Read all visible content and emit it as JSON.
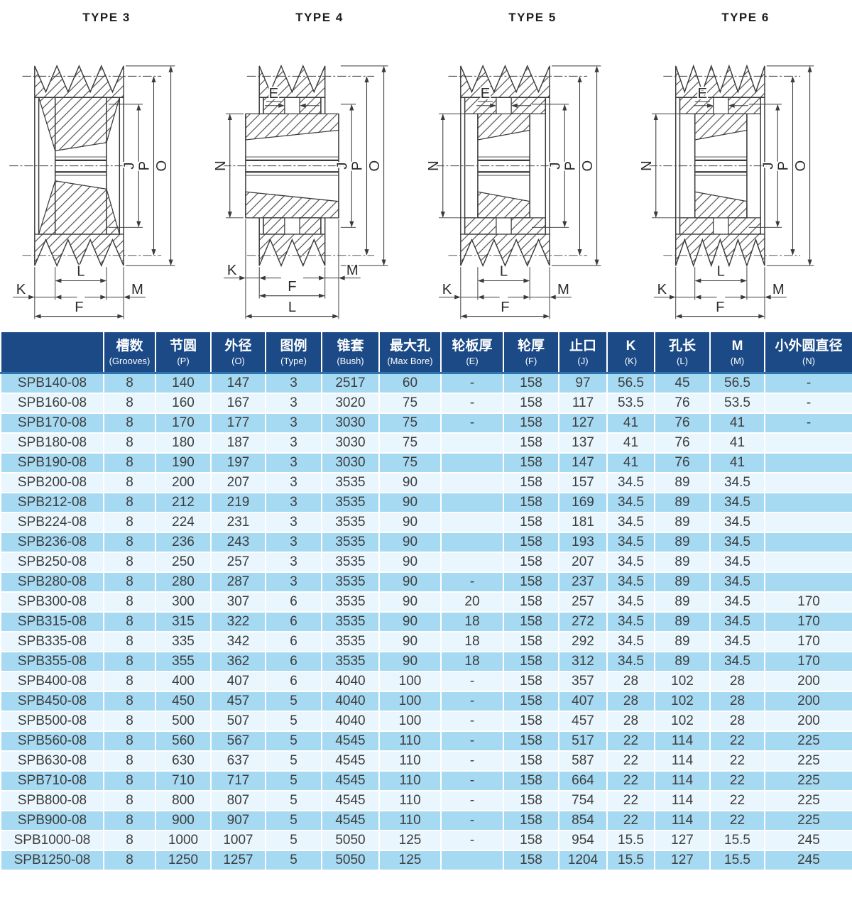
{
  "colors": {
    "header_bg": "#1b4a86",
    "header_divider": "#2e74ad",
    "row_odd": "#a6daf3",
    "row_even": "#e9f6fd",
    "cell_text": "#3d3d3d",
    "line": "#3b3b3b"
  },
  "drawings": [
    {
      "title": "TYPE 3",
      "labels": {
        "j": "J",
        "p": "P",
        "o": "O",
        "k": "K",
        "l": "L",
        "m": "M",
        "f": "F"
      }
    },
    {
      "title": "TYPE 4",
      "labels": {
        "e": "E",
        "n": "N",
        "j": "J",
        "p": "P",
        "o": "O",
        "k": "K",
        "l": "L",
        "m": "M",
        "f": "F"
      }
    },
    {
      "title": "TYPE 5",
      "labels": {
        "e": "E",
        "n": "N",
        "j": "J",
        "p": "P",
        "o": "O",
        "k": "K",
        "l": "L",
        "m": "M",
        "f": "F"
      }
    },
    {
      "title": "TYPE 6",
      "labels": {
        "e": "E",
        "n": "N",
        "j": "J",
        "p": "P",
        "o": "O",
        "k": "K",
        "l": "L",
        "m": "M",
        "f": "F"
      }
    }
  ],
  "table": {
    "columns": [
      {
        "zh": "",
        "en": ""
      },
      {
        "zh": "槽数",
        "en": "(Grooves)"
      },
      {
        "zh": "节圆",
        "en": "(P)"
      },
      {
        "zh": "外径",
        "en": "(O)"
      },
      {
        "zh": "图例",
        "en": "(Type)"
      },
      {
        "zh": "锥套",
        "en": "(Bush)"
      },
      {
        "zh": "最大孔",
        "en": "(Max Bore)"
      },
      {
        "zh": "轮板厚",
        "en": "(E)"
      },
      {
        "zh": "轮厚",
        "en": "(F)"
      },
      {
        "zh": "止口",
        "en": "(J)"
      },
      {
        "zh": "K",
        "en": "(K)"
      },
      {
        "zh": "孔长",
        "en": "(L)"
      },
      {
        "zh": "M",
        "en": "(M)"
      },
      {
        "zh": "小外圆直径",
        "en": "(N)"
      }
    ],
    "rows": [
      [
        "SPB140-08",
        "8",
        "140",
        "147",
        "3",
        "2517",
        "60",
        "-",
        "158",
        "97",
        "56.5",
        "45",
        "56.5",
        "-"
      ],
      [
        "SPB160-08",
        "8",
        "160",
        "167",
        "3",
        "3020",
        "75",
        "-",
        "158",
        "117",
        "53.5",
        "76",
        "53.5",
        "-"
      ],
      [
        "SPB170-08",
        "8",
        "170",
        "177",
        "3",
        "3030",
        "75",
        "-",
        "158",
        "127",
        "41",
        "76",
        "41",
        "-"
      ],
      [
        "SPB180-08",
        "8",
        "180",
        "187",
        "3",
        "3030",
        "75",
        "",
        "158",
        "137",
        "41",
        "76",
        "41",
        ""
      ],
      [
        "SPB190-08",
        "8",
        "190",
        "197",
        "3",
        "3030",
        "75",
        "",
        "158",
        "147",
        "41",
        "76",
        "41",
        ""
      ],
      [
        "SPB200-08",
        "8",
        "200",
        "207",
        "3",
        "3535",
        "90",
        "",
        "158",
        "157",
        "34.5",
        "89",
        "34.5",
        ""
      ],
      [
        "SPB212-08",
        "8",
        "212",
        "219",
        "3",
        "3535",
        "90",
        "",
        "158",
        "169",
        "34.5",
        "89",
        "34.5",
        ""
      ],
      [
        "SPB224-08",
        "8",
        "224",
        "231",
        "3",
        "3535",
        "90",
        "",
        "158",
        "181",
        "34.5",
        "89",
        "34.5",
        ""
      ],
      [
        "SPB236-08",
        "8",
        "236",
        "243",
        "3",
        "3535",
        "90",
        "",
        "158",
        "193",
        "34.5",
        "89",
        "34.5",
        ""
      ],
      [
        "SPB250-08",
        "8",
        "250",
        "257",
        "3",
        "3535",
        "90",
        "",
        "158",
        "207",
        "34.5",
        "89",
        "34.5",
        ""
      ],
      [
        "SPB280-08",
        "8",
        "280",
        "287",
        "3",
        "3535",
        "90",
        "-",
        "158",
        "237",
        "34.5",
        "89",
        "34.5",
        ""
      ],
      [
        "SPB300-08",
        "8",
        "300",
        "307",
        "6",
        "3535",
        "90",
        "20",
        "158",
        "257",
        "34.5",
        "89",
        "34.5",
        "170"
      ],
      [
        "SPB315-08",
        "8",
        "315",
        "322",
        "6",
        "3535",
        "90",
        "18",
        "158",
        "272",
        "34.5",
        "89",
        "34.5",
        "170"
      ],
      [
        "SPB335-08",
        "8",
        "335",
        "342",
        "6",
        "3535",
        "90",
        "18",
        "158",
        "292",
        "34.5",
        "89",
        "34.5",
        "170"
      ],
      [
        "SPB355-08",
        "8",
        "355",
        "362",
        "6",
        "3535",
        "90",
        "18",
        "158",
        "312",
        "34.5",
        "89",
        "34.5",
        "170"
      ],
      [
        "SPB400-08",
        "8",
        "400",
        "407",
        "6",
        "4040",
        "100",
        "-",
        "158",
        "357",
        "28",
        "102",
        "28",
        "200"
      ],
      [
        "SPB450-08",
        "8",
        "450",
        "457",
        "5",
        "4040",
        "100",
        "-",
        "158",
        "407",
        "28",
        "102",
        "28",
        "200"
      ],
      [
        "SPB500-08",
        "8",
        "500",
        "507",
        "5",
        "4040",
        "100",
        "-",
        "158",
        "457",
        "28",
        "102",
        "28",
        "200"
      ],
      [
        "SPB560-08",
        "8",
        "560",
        "567",
        "5",
        "4545",
        "110",
        "-",
        "158",
        "517",
        "22",
        "114",
        "22",
        "225"
      ],
      [
        "SPB630-08",
        "8",
        "630",
        "637",
        "5",
        "4545",
        "110",
        "-",
        "158",
        "587",
        "22",
        "114",
        "22",
        "225"
      ],
      [
        "SPB710-08",
        "8",
        "710",
        "717",
        "5",
        "4545",
        "110",
        "-",
        "158",
        "664",
        "22",
        "114",
        "22",
        "225"
      ],
      [
        "SPB800-08",
        "8",
        "800",
        "807",
        "5",
        "4545",
        "110",
        "-",
        "158",
        "754",
        "22",
        "114",
        "22",
        "225"
      ],
      [
        "SPB900-08",
        "8",
        "900",
        "907",
        "5",
        "4545",
        "110",
        "-",
        "158",
        "854",
        "22",
        "114",
        "22",
        "225"
      ],
      [
        "SPB1000-08",
        "8",
        "1000",
        "1007",
        "5",
        "5050",
        "125",
        "-",
        "158",
        "954",
        "15.5",
        "127",
        "15.5",
        "245"
      ],
      [
        "SPB1250-08",
        "8",
        "1250",
        "1257",
        "5",
        "5050",
        "125",
        "",
        "158",
        "1204",
        "15.5",
        "127",
        "15.5",
        "245"
      ]
    ]
  }
}
